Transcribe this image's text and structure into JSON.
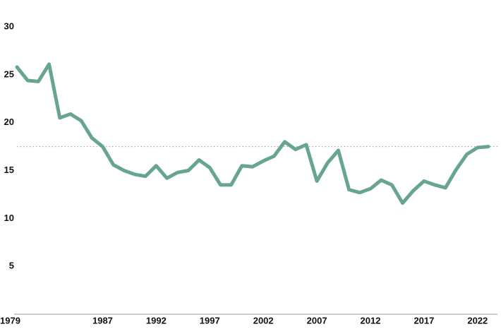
{
  "chart_data": {
    "type": "line",
    "x": [
      1979,
      1980,
      1981,
      1982,
      1983,
      1984,
      1985,
      1986,
      1987,
      1988,
      1989,
      1990,
      1991,
      1992,
      1993,
      1994,
      1995,
      1996,
      1997,
      1998,
      1999,
      2000,
      2001,
      2002,
      2003,
      2004,
      2005,
      2006,
      2007,
      2008,
      2009,
      2010,
      2011,
      2012,
      2013,
      2014,
      2015,
      2016,
      2017,
      2018,
      2019,
      2020,
      2021,
      2022,
      2023
    ],
    "values": [
      25.8,
      24.4,
      24.3,
      26.1,
      20.5,
      20.9,
      20.2,
      18.4,
      17.5,
      15.6,
      15.0,
      14.6,
      14.4,
      15.5,
      14.2,
      14.8,
      15.0,
      16.1,
      15.3,
      13.5,
      13.5,
      15.5,
      15.4,
      16.0,
      16.5,
      18.0,
      17.2,
      17.7,
      13.9,
      15.8,
      17.1,
      13.0,
      12.7,
      13.1,
      14.0,
      13.5,
      11.6,
      12.9,
      13.9,
      13.5,
      13.2,
      15.1,
      16.7,
      17.4,
      17.5
    ],
    "color": "#68a493",
    "reference_line": 17.5,
    "xlim": [
      1979,
      2023
    ],
    "xticks": [
      1979,
      1987,
      1992,
      1997,
      2002,
      2007,
      2012,
      2017,
      2022
    ],
    "ylim": [
      0,
      30
    ],
    "yticks": [
      5,
      10,
      15,
      20,
      25,
      30
    ]
  }
}
